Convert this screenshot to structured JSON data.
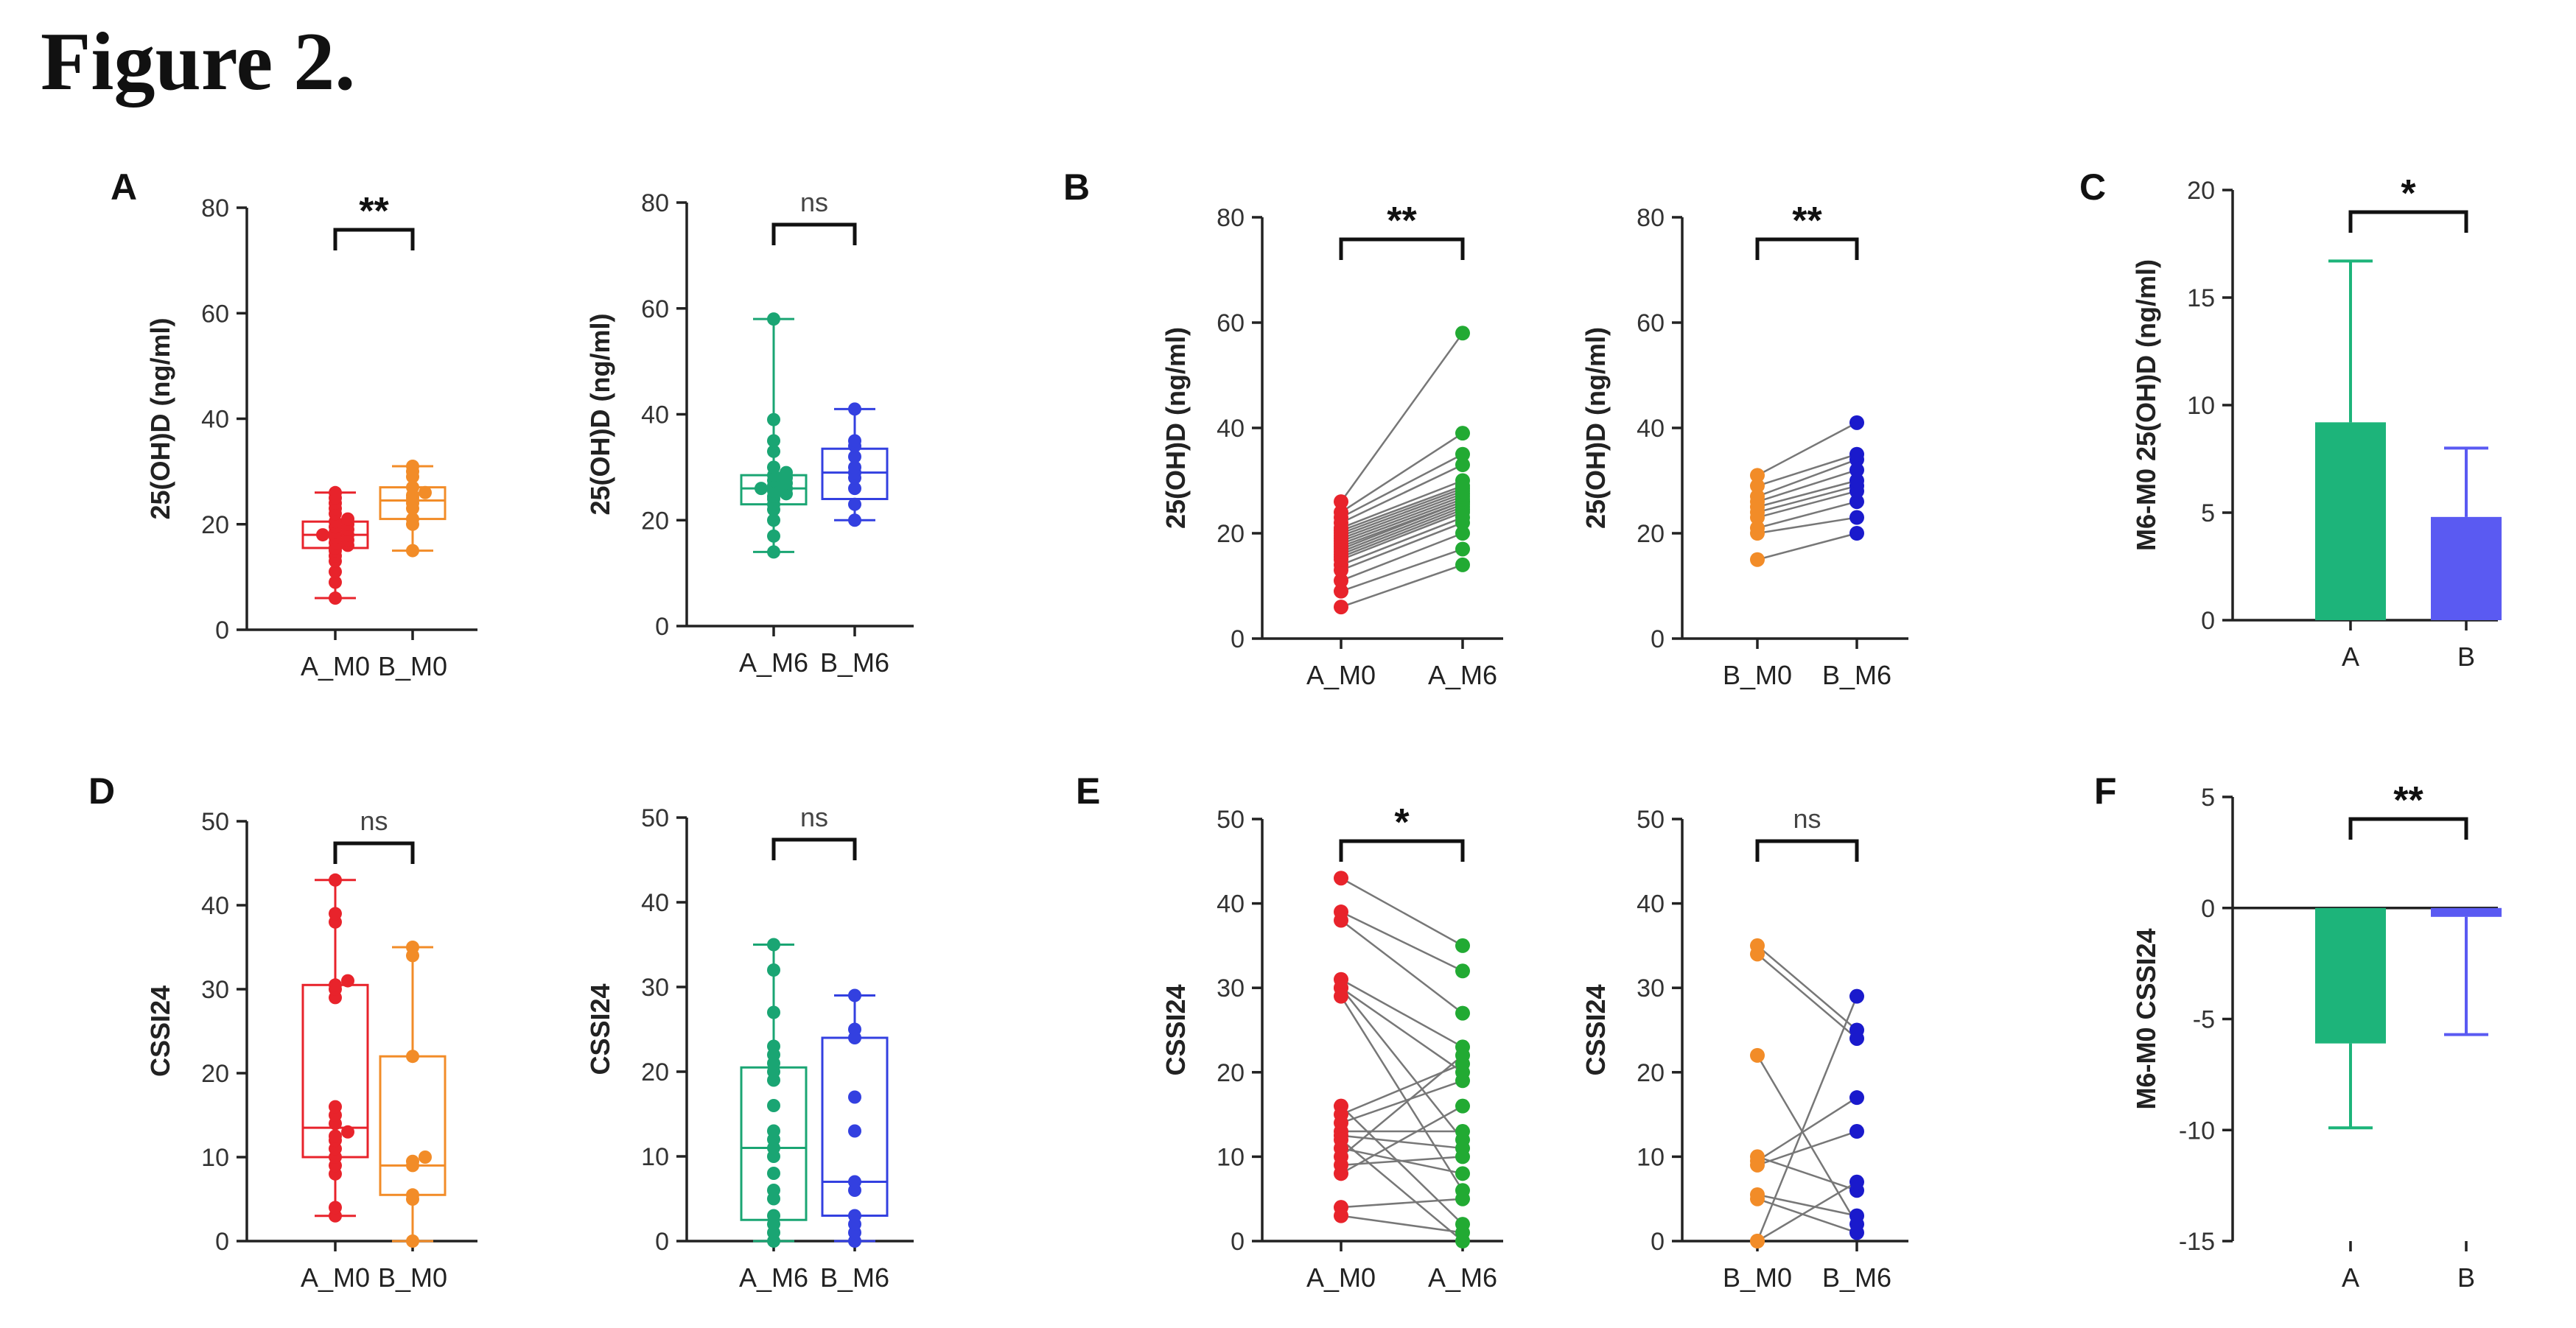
{
  "figure_title": "Figure 2.",
  "panel_letters": [
    "A",
    "B",
    "C",
    "D",
    "E",
    "F"
  ],
  "colors": {
    "A_M0": "#e8232b",
    "B_M0": "#f28c28",
    "A_M6": "#1aa573",
    "B_M6": "#3340e0",
    "A_line": "#22aa33",
    "B_line": "#1a1acc",
    "bar_A": "#1db47a",
    "bar_B": "#5a5af2",
    "connector": "#777777",
    "axis": "#222222"
  },
  "chart_data": [
    {
      "id": "A1",
      "panel": "A",
      "type": "box",
      "ylabel": "25(OH)D (ng/ml)",
      "ylim": [
        0,
        80
      ],
      "yticks": [
        0,
        20,
        40,
        60,
        80
      ],
      "significance": "**",
      "categories": [
        "A_M0",
        "B_M0"
      ],
      "boxes": [
        {
          "group": "A_M0",
          "min": 6,
          "q1": 15.5,
          "median": 18,
          "q3": 20.5,
          "max": 26,
          "points": [
            6,
            9,
            11,
            13,
            14,
            15,
            15.5,
            16,
            16.5,
            17,
            17.5,
            18,
            18,
            18.5,
            19,
            19.5,
            20,
            20.5,
            21,
            22,
            23,
            24,
            25,
            26
          ]
        },
        {
          "group": "B_M0",
          "min": 15,
          "q1": 21,
          "median": 24.5,
          "q3": 27,
          "max": 31,
          "points": [
            15,
            20,
            21,
            23,
            24,
            25,
            25.5,
            26,
            27,
            29,
            30,
            31
          ]
        }
      ]
    },
    {
      "id": "A2",
      "panel": "A",
      "type": "box",
      "ylabel": "25(OH)D (ng/ml)",
      "ylim": [
        0,
        80
      ],
      "yticks": [
        0,
        20,
        40,
        60,
        80
      ],
      "significance": "ns",
      "categories": [
        "A_M6",
        "B_M6"
      ],
      "boxes": [
        {
          "group": "A_M6",
          "min": 14,
          "q1": 23,
          "median": 26,
          "q3": 28.5,
          "max": 58,
          "points": [
            14,
            17,
            20,
            22,
            23,
            24,
            24.5,
            25,
            25.5,
            26,
            26,
            26.5,
            27,
            27.5,
            28,
            28.5,
            29,
            30,
            33,
            35,
            39,
            58
          ]
        },
        {
          "group": "B_M6",
          "min": 20,
          "q1": 24,
          "median": 29,
          "q3": 33.5,
          "max": 41,
          "points": [
            20,
            23,
            26,
            28,
            29,
            30,
            32,
            34,
            35,
            41
          ]
        }
      ]
    },
    {
      "id": "B1",
      "panel": "B",
      "type": "paired",
      "ylabel": "25(OH)D (ng/ml)",
      "ylim": [
        0,
        80
      ],
      "yticks": [
        0,
        20,
        40,
        60,
        80
      ],
      "significance": "**",
      "categories": [
        "A_M0",
        "A_M6"
      ],
      "pairs": [
        [
          6,
          14
        ],
        [
          9,
          17
        ],
        [
          11,
          20
        ],
        [
          13,
          22
        ],
        [
          14,
          23
        ],
        [
          15,
          24
        ],
        [
          15.5,
          24.5
        ],
        [
          16,
          25
        ],
        [
          16.5,
          25.5
        ],
        [
          17,
          26
        ],
        [
          17.5,
          26
        ],
        [
          18,
          26.5
        ],
        [
          18.5,
          27
        ],
        [
          19,
          27.5
        ],
        [
          19.5,
          28
        ],
        [
          20,
          28.5
        ],
        [
          20.5,
          29
        ],
        [
          21,
          30
        ],
        [
          22,
          33
        ],
        [
          23,
          35
        ],
        [
          24,
          39
        ],
        [
          26,
          58
        ]
      ]
    },
    {
      "id": "B2",
      "panel": "B",
      "type": "paired",
      "ylabel": "25(OH)D (ng/ml)",
      "ylim": [
        0,
        80
      ],
      "yticks": [
        0,
        20,
        40,
        60,
        80
      ],
      "significance": "**",
      "categories": [
        "B_M0",
        "B_M6"
      ],
      "pairs": [
        [
          15,
          20
        ],
        [
          20,
          23
        ],
        [
          21,
          26
        ],
        [
          23,
          28
        ],
        [
          24,
          29
        ],
        [
          25,
          30
        ],
        [
          26,
          32
        ],
        [
          27,
          34
        ],
        [
          29,
          35
        ],
        [
          31,
          41
        ]
      ]
    },
    {
      "id": "C",
      "panel": "C",
      "type": "bar",
      "ylabel": "M6-M0 25(OH)D (ng/ml)",
      "ylim": [
        0,
        20
      ],
      "yticks": [
        0,
        5,
        10,
        15,
        20
      ],
      "significance": "*",
      "categories": [
        "A",
        "B"
      ],
      "values": [
        9.2,
        4.8
      ],
      "errors": [
        7.5,
        3.2
      ]
    },
    {
      "id": "D1",
      "panel": "D",
      "type": "box",
      "ylabel": "CSSI24",
      "ylim": [
        0,
        50
      ],
      "yticks": [
        0,
        10,
        20,
        30,
        40,
        50
      ],
      "significance": "ns",
      "categories": [
        "A_M0",
        "B_M0"
      ],
      "boxes": [
        {
          "group": "A_M0",
          "min": 3,
          "q1": 10,
          "median": 13.5,
          "q3": 30.5,
          "max": 43,
          "points": [
            3,
            4,
            8,
            9,
            10,
            11,
            12,
            12.5,
            13,
            14,
            15,
            16,
            29,
            30,
            30.5,
            31,
            38,
            39,
            43
          ]
        },
        {
          "group": "B_M0",
          "min": 0,
          "q1": 5.5,
          "median": 9,
          "q3": 22,
          "max": 35,
          "points": [
            0,
            5,
            5.5,
            9,
            9.5,
            10,
            22,
            34,
            35
          ]
        }
      ]
    },
    {
      "id": "D2",
      "panel": "D",
      "type": "box",
      "ylabel": "CSSI24",
      "ylim": [
        0,
        50
      ],
      "yticks": [
        0,
        10,
        20,
        30,
        40,
        50
      ],
      "significance": "ns",
      "categories": [
        "A_M6",
        "B_M6"
      ],
      "boxes": [
        {
          "group": "A_M6",
          "min": 0,
          "q1": 2.5,
          "median": 11,
          "q3": 20.5,
          "max": 35,
          "points": [
            0,
            1,
            2,
            3,
            5,
            6,
            8,
            10,
            11,
            12,
            13,
            16,
            19,
            20,
            21,
            22,
            23,
            27,
            32,
            35
          ]
        },
        {
          "group": "B_M6",
          "min": 0,
          "q1": 3,
          "median": 7,
          "q3": 24,
          "max": 29,
          "points": [
            0,
            1,
            2,
            3,
            6,
            7,
            13,
            17,
            24,
            25,
            29
          ]
        }
      ]
    },
    {
      "id": "E1",
      "panel": "E",
      "type": "paired",
      "ylabel": "CSSI24",
      "ylim": [
        0,
        50
      ],
      "yticks": [
        0,
        10,
        20,
        30,
        40,
        50
      ],
      "significance": "*",
      "categories": [
        "A_M0",
        "A_M6"
      ],
      "pairs": [
        [
          43,
          35
        ],
        [
          39,
          32
        ],
        [
          38,
          27
        ],
        [
          31,
          23
        ],
        [
          30,
          20
        ],
        [
          30,
          12
        ],
        [
          29,
          6
        ],
        [
          16,
          2
        ],
        [
          15,
          21
        ],
        [
          14,
          19
        ],
        [
          13,
          13
        ],
        [
          12.5,
          11
        ],
        [
          12,
          0
        ],
        [
          11,
          8
        ],
        [
          10,
          22
        ],
        [
          9,
          10
        ],
        [
          8,
          16
        ],
        [
          4,
          5
        ],
        [
          3,
          1
        ]
      ]
    },
    {
      "id": "E2",
      "panel": "E",
      "type": "paired",
      "ylabel": "CSSI24",
      "ylim": [
        0,
        50
      ],
      "yticks": [
        0,
        10,
        20,
        30,
        40,
        50
      ],
      "significance": "ns",
      "categories": [
        "B_M0",
        "B_M6"
      ],
      "pairs": [
        [
          35,
          25
        ],
        [
          34,
          24
        ],
        [
          22,
          2
        ],
        [
          10,
          6
        ],
        [
          9.5,
          17
        ],
        [
          9,
          13
        ],
        [
          5.5,
          3
        ],
        [
          5,
          1
        ],
        [
          0,
          29
        ],
        [
          0,
          7
        ]
      ]
    },
    {
      "id": "F",
      "panel": "F",
      "type": "bar",
      "ylabel": "M6-M0 CSSI24",
      "ylim": [
        -15,
        5
      ],
      "yticks": [
        -15,
        -10,
        -5,
        0,
        5
      ],
      "significance": "**",
      "categories": [
        "A",
        "B"
      ],
      "values": [
        -6.1,
        -0.4
      ],
      "errors": [
        3.8,
        5.3
      ]
    }
  ]
}
